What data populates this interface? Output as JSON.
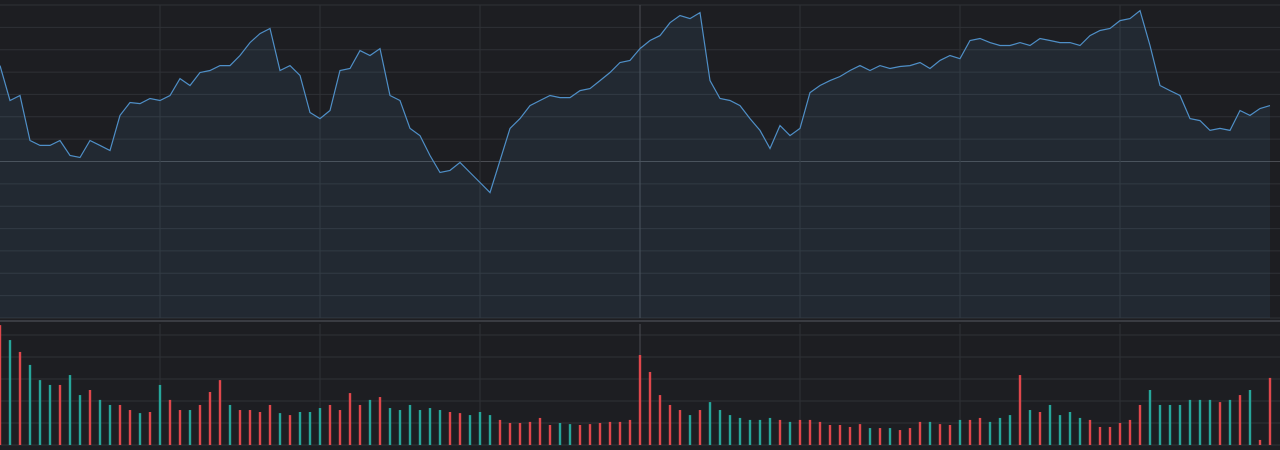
{
  "chart_data": [
    {
      "type": "area",
      "color": "#4f8fc7",
      "grid": true,
      "xlim": [
        0,
        128
      ],
      "xticks": [
        16,
        32,
        48,
        64,
        80,
        96,
        112
      ],
      "ylim": [
        -7,
        7
      ],
      "yticks": [
        -7,
        -6,
        -5,
        -4,
        -3,
        -2,
        -1,
        0,
        1,
        2,
        3,
        4,
        5,
        6,
        7
      ],
      "values": [
        4.29,
        2.73,
        2.95,
        0.94,
        0.72,
        0.72,
        0.94,
        0.27,
        0.18,
        0.94,
        0.72,
        0.49,
        2.06,
        2.64,
        2.59,
        2.82,
        2.73,
        2.95,
        3.71,
        3.4,
        3.98,
        4.07,
        4.29,
        4.29,
        4.74,
        5.32,
        5.72,
        5.95,
        4.07,
        4.29,
        3.85,
        2.19,
        1.92,
        2.28,
        4.07,
        4.16,
        4.96,
        4.74,
        5.05,
        2.95,
        2.73,
        1.48,
        1.16,
        0.27,
        -0.49,
        -0.4,
        -0.04,
        -0.49,
        -0.94,
        -1.39,
        0.04,
        1.48,
        1.92,
        2.5,
        2.73,
        2.95,
        2.86,
        2.86,
        3.17,
        3.26,
        3.62,
        3.98,
        4.43,
        4.52,
        5.05,
        5.41,
        5.63,
        6.21,
        6.53,
        6.39,
        6.66,
        3.62,
        2.82,
        2.73,
        2.5,
        1.92,
        1.39,
        0.58,
        1.61,
        1.16,
        1.48,
        3.08,
        3.4,
        3.62,
        3.8,
        4.07,
        4.29,
        4.07,
        4.29,
        4.16,
        4.25,
        4.29,
        4.43,
        4.16,
        4.52,
        4.74,
        4.6,
        5.41,
        5.5,
        5.32,
        5.19,
        5.19,
        5.32,
        5.19,
        5.5,
        5.41,
        5.32,
        5.32,
        5.19,
        5.63,
        5.86,
        5.95,
        6.3,
        6.39,
        6.75,
        5.19,
        3.4,
        3.17,
        2.95,
        1.92,
        1.83,
        1.39,
        1.48,
        1.39,
        2.28,
        2.06,
        2.37,
        2.5
      ]
    },
    {
      "type": "bar",
      "grid": true,
      "xlim": [
        0,
        128
      ],
      "xticks": [
        16,
        32,
        48,
        64,
        80,
        96,
        112
      ],
      "ylim": [
        0,
        5.5
      ],
      "yticks": [
        0,
        1,
        2,
        3,
        4,
        5
      ],
      "values": [
        5.45,
        4.77,
        4.23,
        3.64,
        2.95,
        2.73,
        2.73,
        3.18,
        2.27,
        2.5,
        2.05,
        1.82,
        1.82,
        1.59,
        1.45,
        1.5,
        2.73,
        2.05,
        1.59,
        1.59,
        1.82,
        2.41,
        2.95,
        1.82,
        1.59,
        1.59,
        1.5,
        1.82,
        1.45,
        1.36,
        1.5,
        1.5,
        1.68,
        1.82,
        1.59,
        2.36,
        1.82,
        2.05,
        2.18,
        1.68,
        1.59,
        1.82,
        1.59,
        1.68,
        1.59,
        1.5,
        1.45,
        1.36,
        1.5,
        1.36,
        1.14,
        1,
        1,
        1.05,
        1.23,
        0.91,
        1,
        0.95,
        0.91,
        0.95,
        1,
        1.05,
        1.05,
        1.14,
        4.09,
        3.32,
        2.27,
        1.82,
        1.59,
        1.36,
        1.59,
        1.95,
        1.59,
        1.36,
        1.23,
        1.14,
        1.14,
        1.23,
        1.14,
        1.05,
        1.14,
        1.14,
        1.05,
        0.91,
        0.91,
        0.82,
        0.95,
        0.77,
        0.77,
        0.77,
        0.68,
        0.77,
        1.05,
        1.05,
        0.95,
        0.91,
        1.14,
        1.14,
        1.23,
        1.05,
        1.23,
        1.36,
        3.18,
        1.59,
        1.5,
        1.82,
        1.36,
        1.5,
        1.23,
        1.14,
        0.82,
        0.82,
        1,
        1.14,
        1.82,
        2.5,
        1.82,
        1.82,
        1.82,
        2.05,
        2.05,
        2.05,
        1.95,
        2.05,
        2.27,
        2.5,
        0.23,
        3.05
      ],
      "colors": [
        "#e0474c",
        "#26a69a",
        "#e0474c",
        "#26a69a",
        "#26a69a",
        "#26a69a",
        "#e0474c",
        "#26a69a",
        "#26a69a",
        "#e0474c",
        "#26a69a",
        "#26a69a",
        "#e0474c",
        "#e0474c",
        "#26a69a",
        "#e0474c",
        "#26a69a",
        "#e0474c",
        "#e0474c",
        "#26a69a",
        "#e0474c",
        "#e0474c",
        "#e0474c",
        "#26a69a",
        "#e0474c",
        "#e0474c",
        "#e0474c",
        "#e0474c",
        "#26a69a",
        "#e0474c",
        "#26a69a",
        "#26a69a",
        "#26a69a",
        "#e0474c",
        "#e0474c",
        "#e0474c",
        "#e0474c",
        "#26a69a",
        "#e0474c",
        "#26a69a",
        "#26a69a",
        "#26a69a",
        "#26a69a",
        "#26a69a",
        "#26a69a",
        "#e0474c",
        "#e0474c",
        "#26a69a",
        "#26a69a",
        "#26a69a",
        "#e0474c",
        "#e0474c",
        "#e0474c",
        "#e0474c",
        "#e0474c",
        "#e0474c",
        "#26a69a",
        "#26a69a",
        "#e0474c",
        "#e0474c",
        "#e0474c",
        "#e0474c",
        "#e0474c",
        "#e0474c",
        "#e0474c",
        "#e0474c",
        "#e0474c",
        "#e0474c",
        "#e0474c",
        "#26a69a",
        "#e0474c",
        "#26a69a",
        "#26a69a",
        "#26a69a",
        "#26a69a",
        "#26a69a",
        "#26a69a",
        "#26a69a",
        "#e0474c",
        "#26a69a",
        "#e0474c",
        "#e0474c",
        "#e0474c",
        "#e0474c",
        "#e0474c",
        "#e0474c",
        "#e0474c",
        "#26a69a",
        "#e0474c",
        "#26a69a",
        "#e0474c",
        "#e0474c",
        "#e0474c",
        "#26a69a",
        "#e0474c",
        "#e0474c",
        "#26a69a",
        "#e0474c",
        "#e0474c",
        "#26a69a",
        "#26a69a",
        "#26a69a",
        "#e0474c",
        "#26a69a",
        "#e0474c",
        "#26a69a",
        "#26a69a",
        "#26a69a",
        "#26a69a",
        "#e0474c",
        "#e0474c",
        "#e0474c",
        "#e0474c",
        "#e0474c",
        "#e0474c",
        "#26a69a",
        "#26a69a",
        "#26a69a",
        "#26a69a",
        "#26a69a",
        "#26a69a",
        "#26a69a",
        "#e0474c",
        "#26a69a",
        "#e0474c",
        "#26a69a",
        "#e0474c",
        "#e0474c"
      ]
    }
  ]
}
